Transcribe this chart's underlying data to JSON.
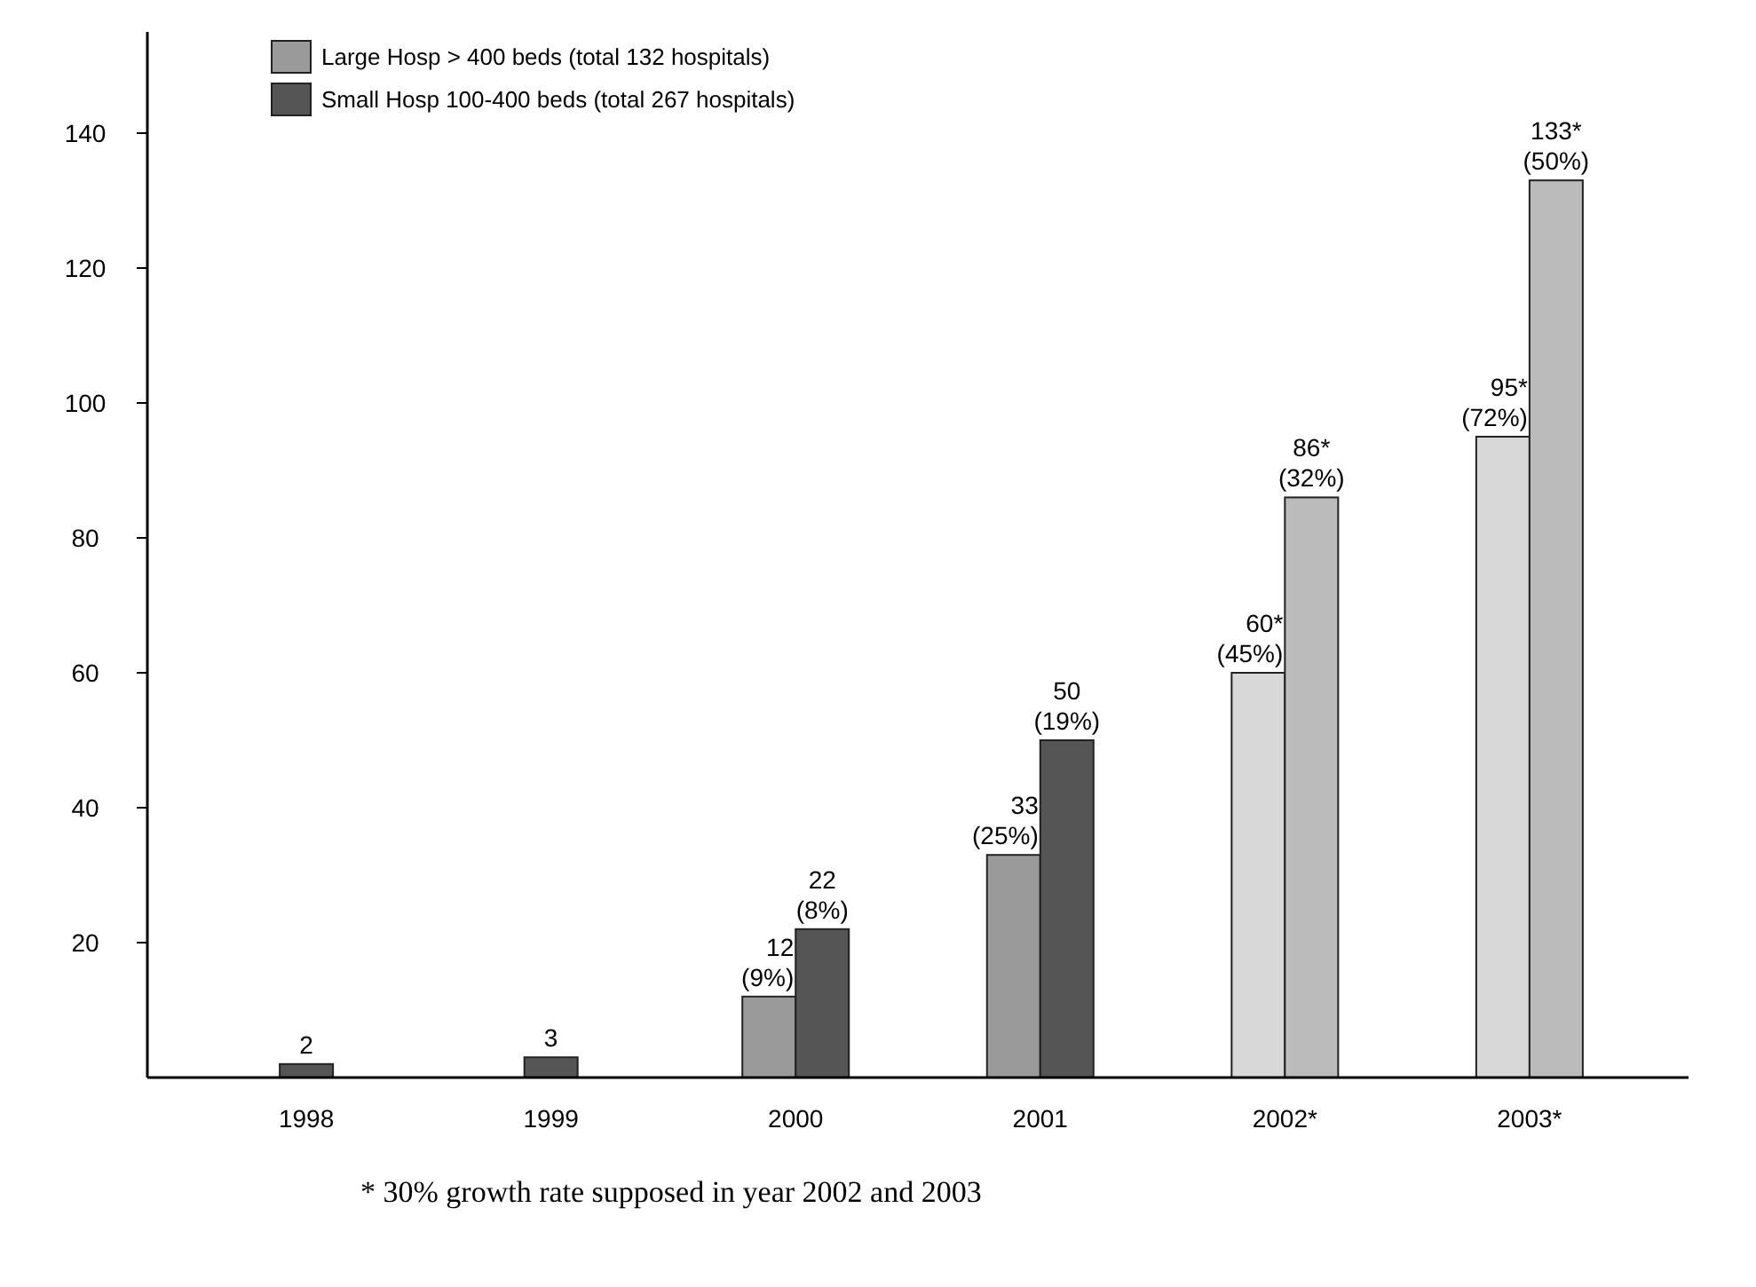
{
  "chart_data": {
    "type": "bar",
    "categories": [
      "1998",
      "1999",
      "2000",
      "2001",
      "2002*",
      "2003*"
    ],
    "series": [
      {
        "name": "Large Hosp > 400 beds (total 132 hospitals)",
        "color": "#9a9a9a",
        "colors": [
          null,
          null,
          "#9a9a9a",
          "#9a9a9a",
          "#d8d8d8",
          "#d8d8d8"
        ],
        "values": [
          null,
          null,
          12,
          33,
          60,
          95
        ],
        "value_labels": [
          null,
          null,
          "12\n(9%)",
          "33\n(25%)",
          "60*\n(45%)",
          "95*\n(72%)"
        ]
      },
      {
        "name": "Small Hosp  100-400 beds (total 267 hospitals)",
        "color": "#555555",
        "colors": [
          "#555555",
          "#555555",
          "#555555",
          "#555555",
          "#bbbbbb",
          "#bbbbbb"
        ],
        "values": [
          2,
          3,
          22,
          50,
          86,
          133
        ],
        "value_labels": [
          "2",
          "3",
          "22\n(8%)",
          "50\n(19%)",
          "86*\n(32%)",
          "133*\n(50%)"
        ]
      }
    ],
    "ylim": [
      0,
      155
    ],
    "yticks": [
      20,
      40,
      60,
      80,
      100,
      120,
      140
    ],
    "grid": false,
    "legend": "top left",
    "annotations": [
      "* 30% growth rate supposed in year 2002 and 2003"
    ]
  }
}
